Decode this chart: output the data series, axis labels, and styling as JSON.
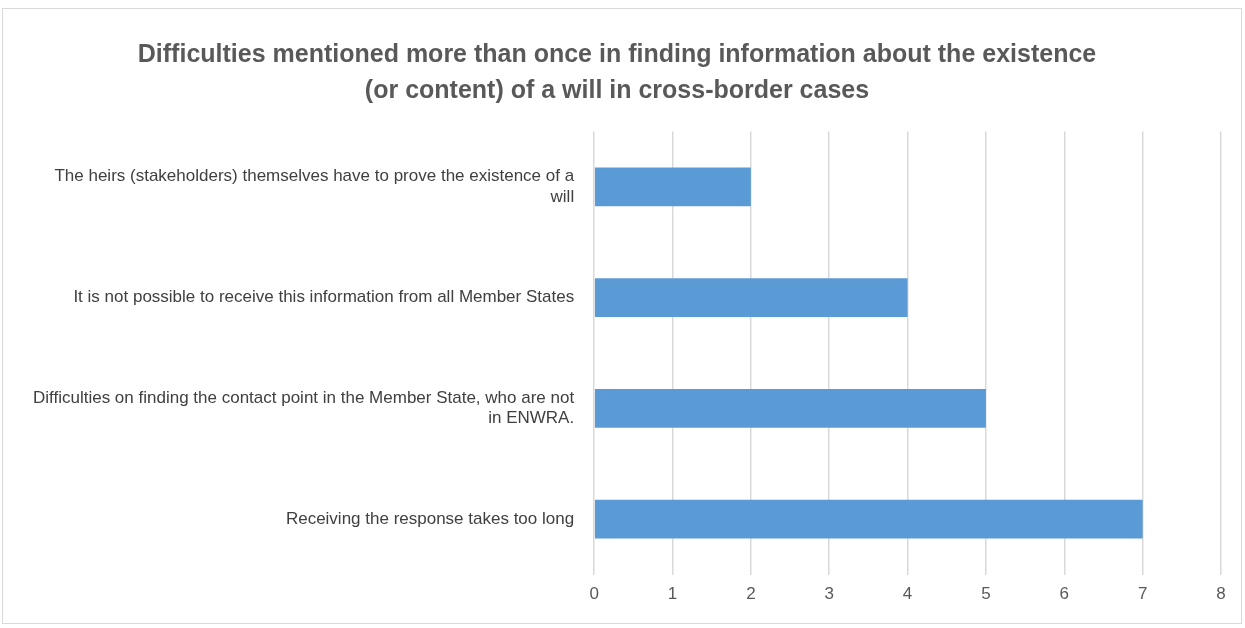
{
  "chart_data": {
    "type": "bar",
    "orientation": "horizontal",
    "title": "Difficulties mentioned more than once in finding information about the existence (or content) of a will in cross-border cases",
    "categories": [
      "The heirs (stakeholders) themselves have to prove the existence of a will",
      "It is not possible to receive this information from all Member States",
      "Difficulties on finding the contact point in the Member State, who are not in ENWRA.",
      "Receiving the response takes too long"
    ],
    "values": [
      2,
      4,
      5,
      7
    ],
    "color": "#5b9bd5",
    "xlim": [
      0,
      8
    ],
    "xticks": [
      0,
      1,
      2,
      3,
      4,
      5,
      6,
      7,
      8
    ],
    "grid": "x",
    "legend": false
  }
}
